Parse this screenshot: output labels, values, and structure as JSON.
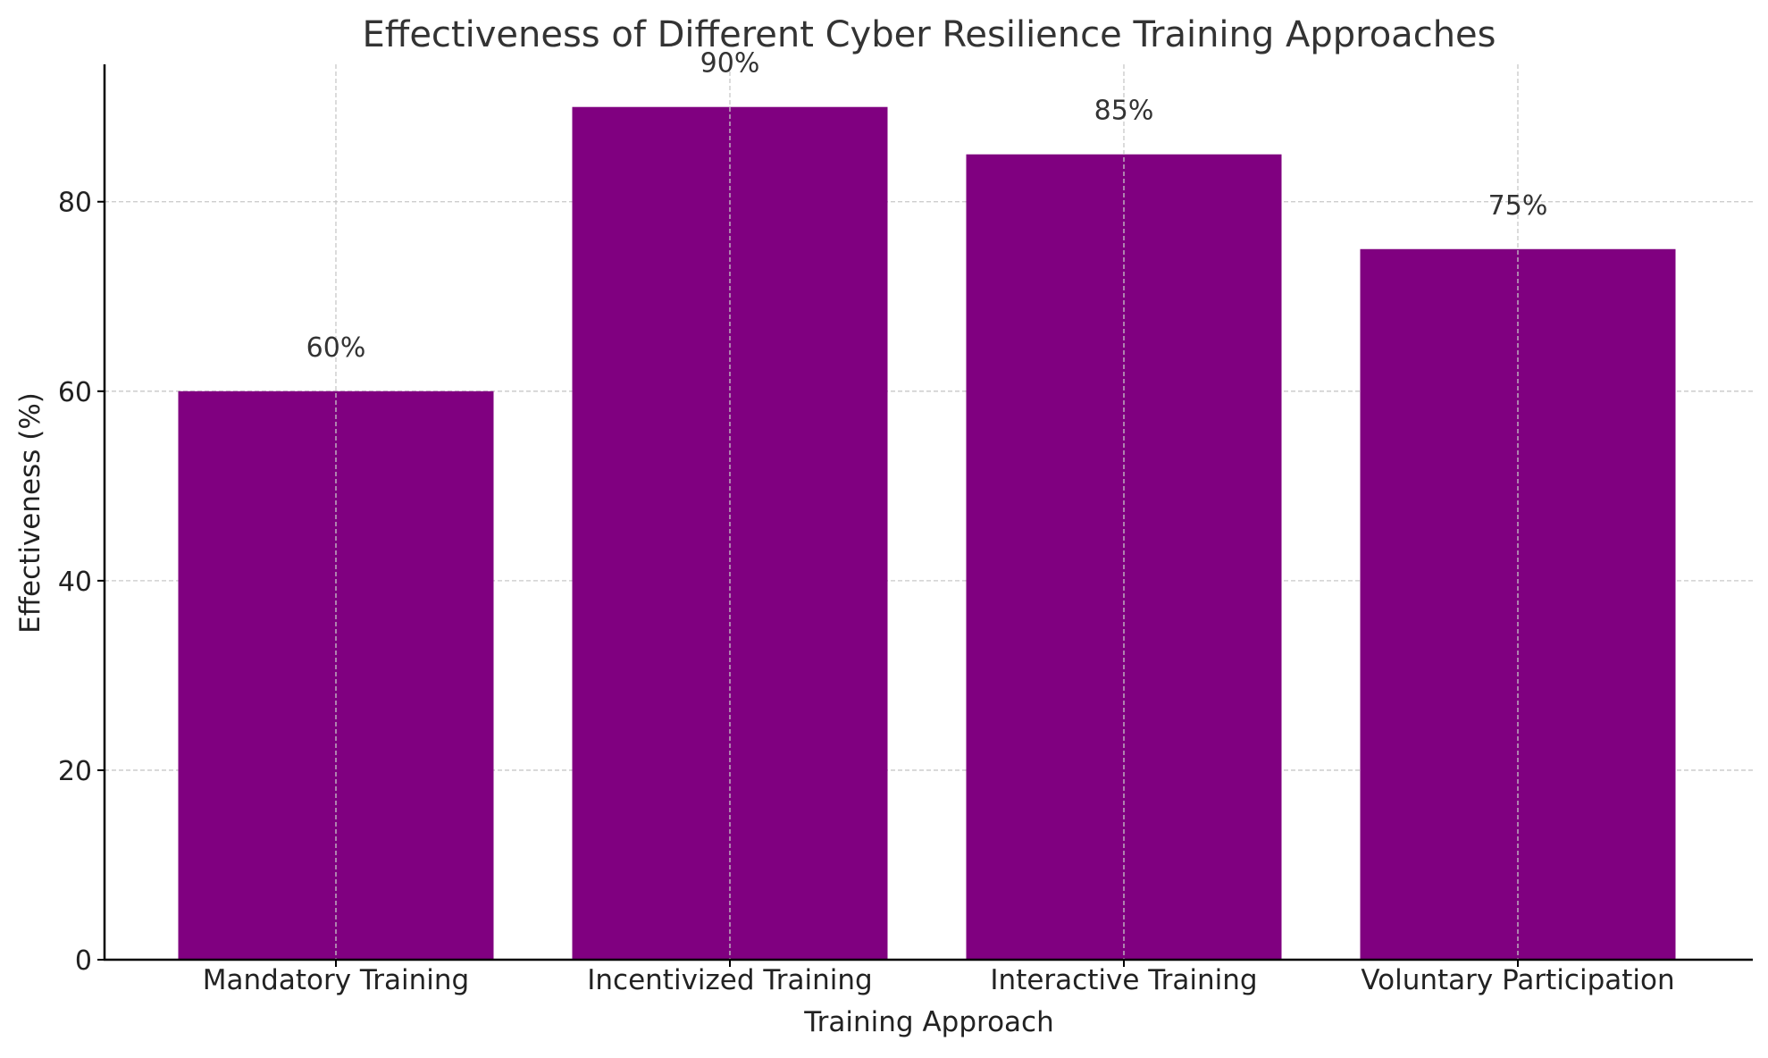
{
  "chart_data": {
    "type": "bar",
    "title": "Effectiveness of Different Cyber Resilience Training Approaches",
    "xlabel": "Training Approach",
    "ylabel": "Effectiveness (%)",
    "categories": [
      "Mandatory Training",
      "Incentivized Training",
      "Interactive Training",
      "Voluntary Participation"
    ],
    "values": [
      60,
      90,
      85,
      75
    ],
    "data_labels": [
      "60%",
      "90%",
      "85%",
      "75%"
    ],
    "ylim": [
      0,
      94.5
    ],
    "yticks": [
      0,
      20,
      40,
      60,
      80
    ],
    "ytick_labels": [
      "0",
      "20",
      "40",
      "60",
      "80"
    ],
    "grid": true,
    "colors": {
      "bar": "#800080",
      "text": "#333333",
      "axis": "#000000",
      "grid": "#c8c8c8"
    }
  }
}
